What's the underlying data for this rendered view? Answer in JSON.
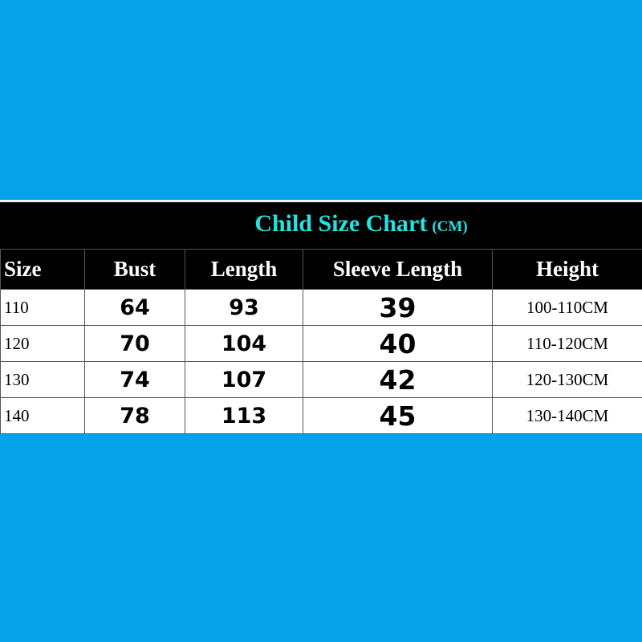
{
  "colors": {
    "background": "#06a3e9",
    "title": "#22e3e0",
    "header_bg": "#000000",
    "cell_bg": "#ffffff"
  },
  "chart_data": {
    "type": "table",
    "title": "Child Size Chart",
    "unit": "(CM)",
    "columns": [
      "Size",
      "Bust",
      "Length",
      "Sleeve Length",
      "Height"
    ],
    "rows": [
      [
        "110",
        "64",
        "93",
        "39",
        "100-110CM"
      ],
      [
        "120",
        "70",
        "104",
        "40",
        "110-120CM"
      ],
      [
        "130",
        "74",
        "107",
        "42",
        "120-130CM"
      ],
      [
        "140",
        "78",
        "113",
        "45",
        "130-140CM"
      ]
    ]
  }
}
